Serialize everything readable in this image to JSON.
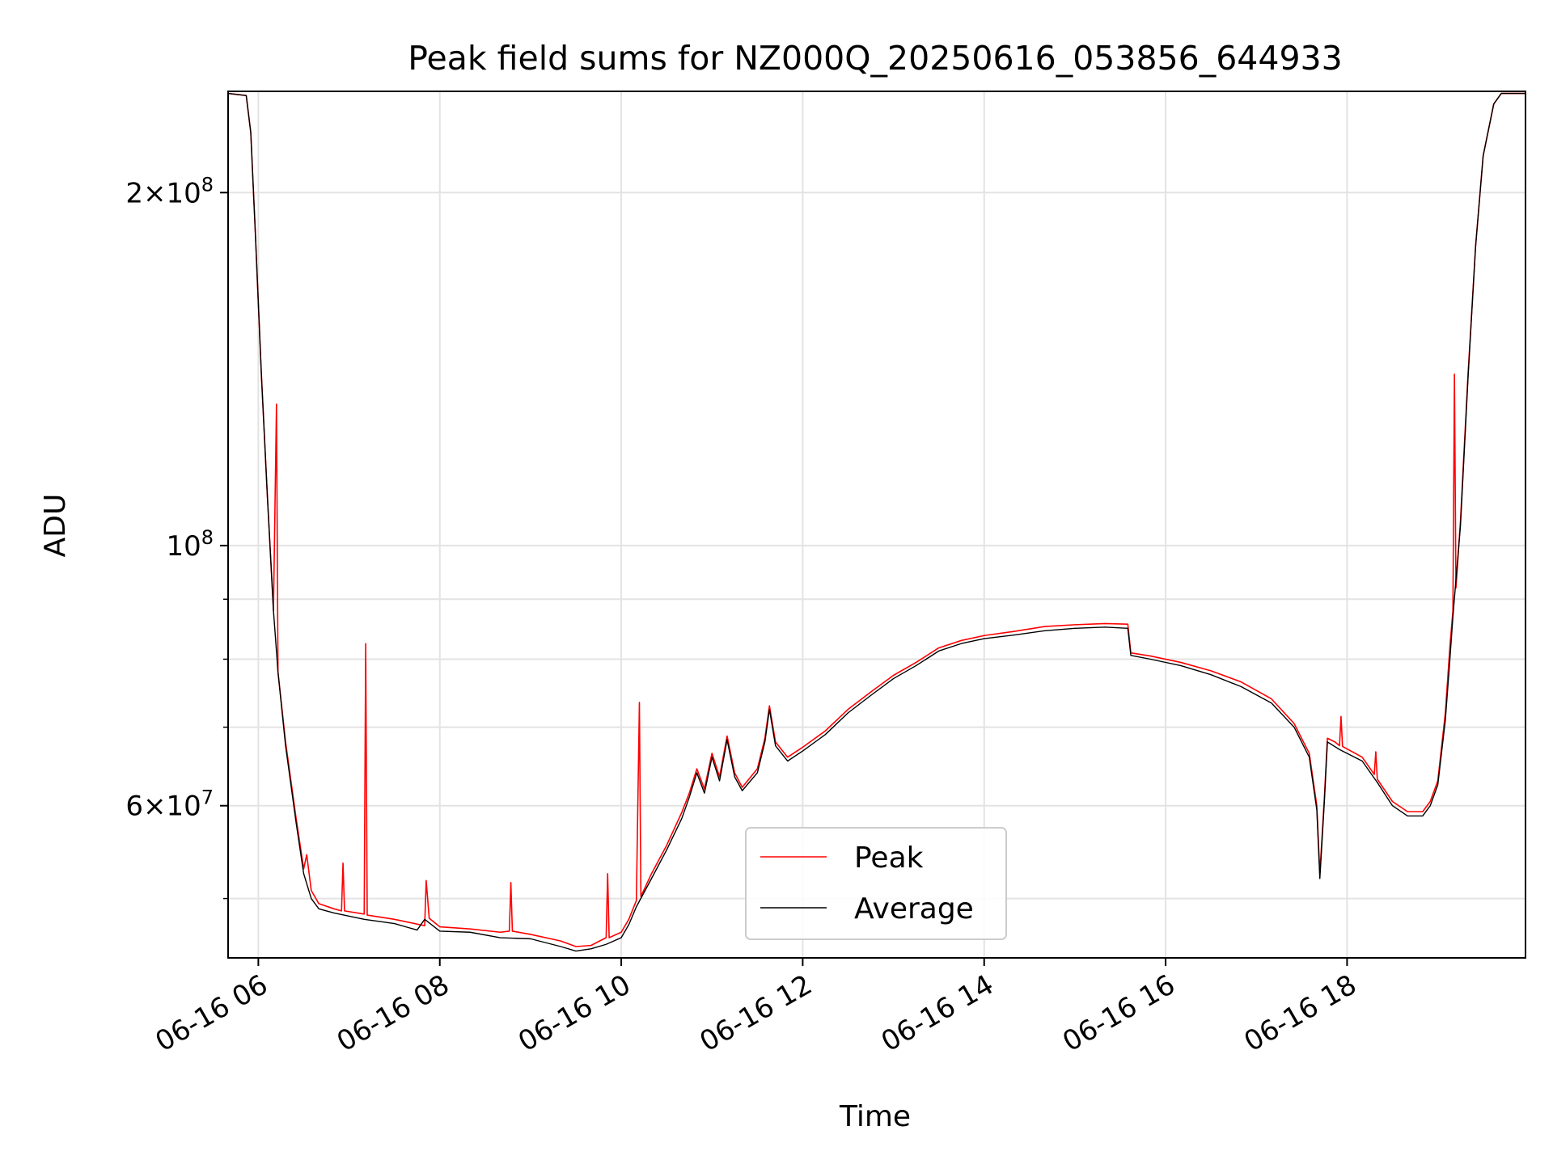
{
  "chart_data": {
    "type": "line",
    "title": "Peak field sums for NZ000Q_20250616_053856_644933",
    "xlabel": "Time",
    "ylabel": "ADU",
    "y_scale": "log",
    "ylim": [
      44500000,
      244000000
    ],
    "xlim": [
      "2025-06-16 05:40",
      "2025-06-16 19:58"
    ],
    "grid": true,
    "legend_position": "lower center",
    "x_ticks": [
      {
        "t": "2025-06-16 06:00",
        "label": "06-16 06"
      },
      {
        "t": "2025-06-16 08:00",
        "label": "06-16 08"
      },
      {
        "t": "2025-06-16 10:00",
        "label": "06-16 10"
      },
      {
        "t": "2025-06-16 12:00",
        "label": "06-16 12"
      },
      {
        "t": "2025-06-16 14:00",
        "label": "06-16 14"
      },
      {
        "t": "2025-06-16 16:00",
        "label": "06-16 16"
      },
      {
        "t": "2025-06-16 18:00",
        "label": "06-16 18"
      }
    ],
    "y_ticks_major": [
      {
        "value": 200000000,
        "base": "2",
        "exp": "8",
        "mult": true
      },
      {
        "value": 100000000,
        "base": "10",
        "exp": "8",
        "mult": false
      },
      {
        "value": 60000000,
        "base": "6",
        "exp": "7",
        "mult": true
      }
    ],
    "y_ticks_minor": [
      50000000,
      70000000,
      80000000,
      90000000
    ],
    "series": [
      {
        "name": "Peak",
        "color": "#ff0000",
        "points": [
          [
            "2025-06-16 05:40",
            243000000
          ],
          [
            "2025-06-16 05:52",
            242000000
          ],
          [
            "2025-06-16 05:55",
            225000000
          ],
          [
            "2025-06-16 05:58",
            185000000
          ],
          [
            "2025-06-16 06:02",
            140000000
          ],
          [
            "2025-06-16 06:06",
            110000000
          ],
          [
            "2025-06-16 06:10",
            88000000
          ],
          [
            "2025-06-16 06:12",
            132000000
          ],
          [
            "2025-06-16 06:13",
            78000000
          ],
          [
            "2025-06-16 06:18",
            68000000
          ],
          [
            "2025-06-16 06:25",
            58500000
          ],
          [
            "2025-06-16 06:30",
            53000000
          ],
          [
            "2025-06-16 06:32",
            54500000
          ],
          [
            "2025-06-16 06:35",
            50800000
          ],
          [
            "2025-06-16 06:40",
            49500000
          ],
          [
            "2025-06-16 06:50",
            49000000
          ],
          [
            "2025-06-16 06:55",
            48800000
          ],
          [
            "2025-06-16 06:56",
            53600000
          ],
          [
            "2025-06-16 06:57",
            48800000
          ],
          [
            "2025-06-16 07:10",
            48500000
          ],
          [
            "2025-06-16 07:11",
            82500000
          ],
          [
            "2025-06-16 07:12",
            48400000
          ],
          [
            "2025-06-16 07:30",
            48000000
          ],
          [
            "2025-06-16 07:50",
            47400000
          ],
          [
            "2025-06-16 07:51",
            51800000
          ],
          [
            "2025-06-16 07:53",
            48100000
          ],
          [
            "2025-06-16 08:00",
            47300000
          ],
          [
            "2025-06-16 08:20",
            47100000
          ],
          [
            "2025-06-16 08:40",
            46800000
          ],
          [
            "2025-06-16 08:46",
            46900000
          ],
          [
            "2025-06-16 08:47",
            51600000
          ],
          [
            "2025-06-16 08:48",
            46900000
          ],
          [
            "2025-06-16 09:00",
            46600000
          ],
          [
            "2025-06-16 09:20",
            46000000
          ],
          [
            "2025-06-16 09:30",
            45500000
          ],
          [
            "2025-06-16 09:40",
            45600000
          ],
          [
            "2025-06-16 09:50",
            46300000
          ],
          [
            "2025-06-16 09:51",
            52500000
          ],
          [
            "2025-06-16 09:52",
            46300000
          ],
          [
            "2025-06-16 10:00",
            46800000
          ],
          [
            "2025-06-16 10:05",
            48000000
          ],
          [
            "2025-06-16 10:10",
            49800000
          ],
          [
            "2025-06-16 10:12",
            73500000
          ],
          [
            "2025-06-16 10:13",
            50200000
          ],
          [
            "2025-06-16 10:20",
            52500000
          ],
          [
            "2025-06-16 10:30",
            55500000
          ],
          [
            "2025-06-16 10:40",
            59200000
          ],
          [
            "2025-06-16 10:45",
            61500000
          ],
          [
            "2025-06-16 10:50",
            64500000
          ],
          [
            "2025-06-16 10:55",
            62000000
          ],
          [
            "2025-06-16 11:00",
            66500000
          ],
          [
            "2025-06-16 11:05",
            63500000
          ],
          [
            "2025-06-16 11:10",
            68800000
          ],
          [
            "2025-06-16 11:15",
            64000000
          ],
          [
            "2025-06-16 11:20",
            62200000
          ],
          [
            "2025-06-16 11:30",
            64500000
          ],
          [
            "2025-06-16 11:35",
            68500000
          ],
          [
            "2025-06-16 11:38",
            73000000
          ],
          [
            "2025-06-16 11:42",
            68000000
          ],
          [
            "2025-06-16 11:50",
            66000000
          ],
          [
            "2025-06-16 12:00",
            67300000
          ],
          [
            "2025-06-16 12:15",
            69500000
          ],
          [
            "2025-06-16 12:30",
            72500000
          ],
          [
            "2025-06-16 12:45",
            75000000
          ],
          [
            "2025-06-16 13:00",
            77500000
          ],
          [
            "2025-06-16 13:15",
            79500000
          ],
          [
            "2025-06-16 13:30",
            81800000
          ],
          [
            "2025-06-16 13:45",
            83000000
          ],
          [
            "2025-06-16 14:00",
            83800000
          ],
          [
            "2025-06-16 14:20",
            84500000
          ],
          [
            "2025-06-16 14:40",
            85300000
          ],
          [
            "2025-06-16 15:00",
            85600000
          ],
          [
            "2025-06-16 15:20",
            85800000
          ],
          [
            "2025-06-16 15:35",
            85700000
          ],
          [
            "2025-06-16 15:37",
            81000000
          ],
          [
            "2025-06-16 15:50",
            80500000
          ],
          [
            "2025-06-16 16:10",
            79500000
          ],
          [
            "2025-06-16 16:30",
            78200000
          ],
          [
            "2025-06-16 16:50",
            76500000
          ],
          [
            "2025-06-16 17:10",
            74000000
          ],
          [
            "2025-06-16 17:25",
            70500000
          ],
          [
            "2025-06-16 17:35",
            66500000
          ],
          [
            "2025-06-16 17:40",
            60000000
          ],
          [
            "2025-06-16 17:42",
            52500000
          ],
          [
            "2025-06-16 17:45",
            61000000
          ],
          [
            "2025-06-16 17:47",
            68500000
          ],
          [
            "2025-06-16 17:52",
            68000000
          ],
          [
            "2025-06-16 17:55",
            67500000
          ],
          [
            "2025-06-16 17:56",
            71500000
          ],
          [
            "2025-06-16 17:57",
            67400000
          ],
          [
            "2025-06-16 18:10",
            66000000
          ],
          [
            "2025-06-16 18:18",
            63800000
          ],
          [
            "2025-06-16 18:19",
            66700000
          ],
          [
            "2025-06-16 18:20",
            63200000
          ],
          [
            "2025-06-16 18:30",
            60500000
          ],
          [
            "2025-06-16 18:40",
            59300000
          ],
          [
            "2025-06-16 18:50",
            59300000
          ],
          [
            "2025-06-16 18:55",
            60500000
          ],
          [
            "2025-06-16 19:00",
            63000000
          ],
          [
            "2025-06-16 19:05",
            72000000
          ],
          [
            "2025-06-16 19:08",
            82000000
          ],
          [
            "2025-06-16 19:10",
            88000000
          ],
          [
            "2025-06-16 19:11",
            140000000
          ],
          [
            "2025-06-16 19:12",
            92000000
          ],
          [
            "2025-06-16 19:15",
            105000000
          ],
          [
            "2025-06-16 19:20",
            140000000
          ],
          [
            "2025-06-16 19:25",
            180000000
          ],
          [
            "2025-06-16 19:30",
            215000000
          ],
          [
            "2025-06-16 19:37",
            238000000
          ],
          [
            "2025-06-16 19:42",
            243000000
          ],
          [
            "2025-06-16 19:58",
            243000000
          ]
        ]
      },
      {
        "name": "Average",
        "color": "#000000",
        "points": [
          [
            "2025-06-16 05:40",
            243000000
          ],
          [
            "2025-06-16 05:52",
            242000000
          ],
          [
            "2025-06-16 05:55",
            225000000
          ],
          [
            "2025-06-16 05:58",
            185000000
          ],
          [
            "2025-06-16 06:02",
            140000000
          ],
          [
            "2025-06-16 06:06",
            110000000
          ],
          [
            "2025-06-16 06:10",
            88000000
          ],
          [
            "2025-06-16 06:13",
            78000000
          ],
          [
            "2025-06-16 06:18",
            67500000
          ],
          [
            "2025-06-16 06:25",
            58000000
          ],
          [
            "2025-06-16 06:30",
            52500000
          ],
          [
            "2025-06-16 06:35",
            50000000
          ],
          [
            "2025-06-16 06:40",
            49000000
          ],
          [
            "2025-06-16 06:50",
            48600000
          ],
          [
            "2025-06-16 07:10",
            48000000
          ],
          [
            "2025-06-16 07:30",
            47600000
          ],
          [
            "2025-06-16 07:45",
            47000000
          ],
          [
            "2025-06-16 07:50",
            48000000
          ],
          [
            "2025-06-16 08:00",
            46900000
          ],
          [
            "2025-06-16 08:20",
            46800000
          ],
          [
            "2025-06-16 08:40",
            46300000
          ],
          [
            "2025-06-16 09:00",
            46200000
          ],
          [
            "2025-06-16 09:20",
            45500000
          ],
          [
            "2025-06-16 09:30",
            45100000
          ],
          [
            "2025-06-16 09:40",
            45300000
          ],
          [
            "2025-06-16 09:50",
            45700000
          ],
          [
            "2025-06-16 10:00",
            46300000
          ],
          [
            "2025-06-16 10:05",
            47500000
          ],
          [
            "2025-06-16 10:10",
            49200000
          ],
          [
            "2025-06-16 10:20",
            52000000
          ],
          [
            "2025-06-16 10:30",
            55000000
          ],
          [
            "2025-06-16 10:40",
            58500000
          ],
          [
            "2025-06-16 10:45",
            61000000
          ],
          [
            "2025-06-16 10:50",
            64000000
          ],
          [
            "2025-06-16 10:55",
            61500000
          ],
          [
            "2025-06-16 11:00",
            66000000
          ],
          [
            "2025-06-16 11:05",
            63000000
          ],
          [
            "2025-06-16 11:10",
            68300000
          ],
          [
            "2025-06-16 11:15",
            63500000
          ],
          [
            "2025-06-16 11:20",
            61800000
          ],
          [
            "2025-06-16 11:30",
            64000000
          ],
          [
            "2025-06-16 11:35",
            68000000
          ],
          [
            "2025-06-16 11:38",
            72500000
          ],
          [
            "2025-06-16 11:42",
            67500000
          ],
          [
            "2025-06-16 11:50",
            65500000
          ],
          [
            "2025-06-16 12:00",
            66800000
          ],
          [
            "2025-06-16 12:15",
            69000000
          ],
          [
            "2025-06-16 12:30",
            72000000
          ],
          [
            "2025-06-16 12:45",
            74500000
          ],
          [
            "2025-06-16 13:00",
            77000000
          ],
          [
            "2025-06-16 13:15",
            79000000
          ],
          [
            "2025-06-16 13:30",
            81300000
          ],
          [
            "2025-06-16 13:45",
            82500000
          ],
          [
            "2025-06-16 14:00",
            83300000
          ],
          [
            "2025-06-16 14:20",
            83900000
          ],
          [
            "2025-06-16 14:40",
            84600000
          ],
          [
            "2025-06-16 15:00",
            85000000
          ],
          [
            "2025-06-16 15:20",
            85200000
          ],
          [
            "2025-06-16 15:35",
            85000000
          ],
          [
            "2025-06-16 15:37",
            80600000
          ],
          [
            "2025-06-16 15:50",
            80000000
          ],
          [
            "2025-06-16 16:10",
            79000000
          ],
          [
            "2025-06-16 16:30",
            77600000
          ],
          [
            "2025-06-16 16:50",
            75800000
          ],
          [
            "2025-06-16 17:10",
            73400000
          ],
          [
            "2025-06-16 17:25",
            70000000
          ],
          [
            "2025-06-16 17:35",
            66000000
          ],
          [
            "2025-06-16 17:40",
            59500000
          ],
          [
            "2025-06-16 17:42",
            52000000
          ],
          [
            "2025-06-16 17:45",
            60500000
          ],
          [
            "2025-06-16 17:47",
            68000000
          ],
          [
            "2025-06-16 17:55",
            67000000
          ],
          [
            "2025-06-16 18:10",
            65500000
          ],
          [
            "2025-06-16 18:20",
            62800000
          ],
          [
            "2025-06-16 18:30",
            60000000
          ],
          [
            "2025-06-16 18:40",
            58800000
          ],
          [
            "2025-06-16 18:50",
            58800000
          ],
          [
            "2025-06-16 18:55",
            60000000
          ],
          [
            "2025-06-16 19:00",
            62500000
          ],
          [
            "2025-06-16 19:05",
            71000000
          ],
          [
            "2025-06-16 19:08",
            80000000
          ],
          [
            "2025-06-16 19:10",
            87000000
          ],
          [
            "2025-06-16 19:15",
            104000000
          ],
          [
            "2025-06-16 19:20",
            139000000
          ],
          [
            "2025-06-16 19:25",
            180000000
          ],
          [
            "2025-06-16 19:30",
            215000000
          ],
          [
            "2025-06-16 19:37",
            238000000
          ],
          [
            "2025-06-16 19:42",
            243000000
          ],
          [
            "2025-06-16 19:58",
            243000000
          ]
        ]
      }
    ]
  }
}
